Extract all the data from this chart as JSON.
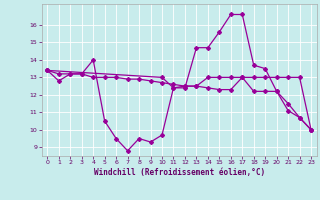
{
  "xlabel": "Windchill (Refroidissement éolien,°C)",
  "background_color": "#c8ecec",
  "line_color": "#990099",
  "grid_color": "#ffffff",
  "xlim": [
    -0.5,
    23.5
  ],
  "ylim": [
    8.5,
    17.2
  ],
  "yticks": [
    9,
    10,
    11,
    12,
    13,
    14,
    15,
    16
  ],
  "xticks": [
    0,
    1,
    2,
    3,
    4,
    5,
    6,
    7,
    8,
    9,
    10,
    11,
    12,
    13,
    14,
    15,
    16,
    17,
    18,
    19,
    20,
    21,
    22,
    23
  ],
  "line1_x": [
    0,
    1,
    2,
    3,
    4,
    5,
    6,
    7,
    8,
    9,
    10,
    11,
    12,
    13,
    14,
    15,
    16,
    17,
    18,
    19,
    20,
    21,
    22,
    23
  ],
  "line1_y": [
    13.4,
    12.8,
    13.2,
    13.2,
    14.0,
    10.5,
    9.5,
    8.8,
    9.5,
    9.3,
    9.7,
    12.4,
    12.4,
    14.7,
    14.7,
    15.6,
    16.6,
    16.6,
    13.7,
    13.5,
    12.2,
    11.1,
    10.7,
    10.0
  ],
  "line2_x": [
    0,
    1,
    2,
    3,
    4,
    5,
    6,
    7,
    8,
    9,
    10,
    11,
    12,
    13,
    14,
    15,
    16,
    17,
    18,
    19,
    20,
    21,
    22,
    23
  ],
  "line2_y": [
    13.4,
    13.2,
    13.2,
    13.2,
    13.0,
    13.0,
    13.0,
    12.9,
    12.9,
    12.8,
    12.7,
    12.6,
    12.5,
    12.5,
    12.4,
    12.3,
    12.3,
    13.0,
    12.2,
    12.2,
    12.2,
    11.5,
    10.7,
    10.0
  ],
  "line3_x": [
    0,
    10,
    11,
    12,
    13,
    14,
    15,
    16,
    17,
    18,
    19,
    20,
    21,
    22,
    23
  ],
  "line3_y": [
    13.4,
    13.0,
    12.4,
    12.5,
    12.5,
    13.0,
    13.0,
    13.0,
    13.0,
    13.0,
    13.0,
    13.0,
    13.0,
    13.0,
    10.0
  ]
}
